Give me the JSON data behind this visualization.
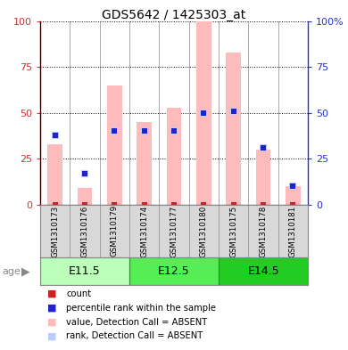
{
  "title": "GDS5642 / 1425303_at",
  "samples": [
    "GSM1310173",
    "GSM1310176",
    "GSM1310179",
    "GSM1310174",
    "GSM1310177",
    "GSM1310180",
    "GSM1310175",
    "GSM1310178",
    "GSM1310181"
  ],
  "groups": [
    {
      "label": "E11.5",
      "indices": [
        0,
        1,
        2
      ],
      "color": "#bbffbb"
    },
    {
      "label": "E12.5",
      "indices": [
        3,
        4,
        5
      ],
      "color": "#55ee55"
    },
    {
      "label": "E14.5",
      "indices": [
        6,
        7,
        8
      ],
      "color": "#22cc22"
    }
  ],
  "bar_values": [
    33,
    9,
    65,
    45,
    53,
    100,
    83,
    30,
    10
  ],
  "rank_values": [
    38,
    17,
    40,
    40,
    40,
    50,
    51,
    31,
    10
  ],
  "bar_color_absent": "#ffbbbb",
  "rank_color_absent": "#bbccff",
  "bar_color": "#cc2222",
  "rank_color": "#2222cc",
  "ylim": [
    0,
    100
  ],
  "yticks": [
    0,
    25,
    50,
    75,
    100
  ],
  "legend_items": [
    {
      "color": "#cc2222",
      "label": "count"
    },
    {
      "color": "#2222cc",
      "label": "percentile rank within the sample"
    },
    {
      "color": "#ffbbbb",
      "label": "value, Detection Call = ABSENT"
    },
    {
      "color": "#bbccff",
      "label": "rank, Detection Call = ABSENT"
    }
  ]
}
